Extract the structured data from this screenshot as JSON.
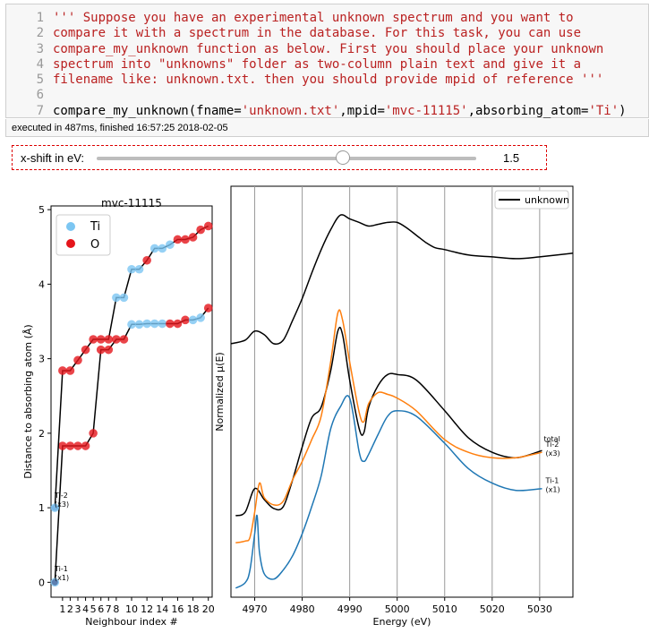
{
  "cell": {
    "line_numbers": [
      "1",
      "2",
      "3",
      "4",
      "5",
      "6",
      "7"
    ],
    "docstring_lines": [
      "''' Suppose you have an experimental unknown spectrum and you want to",
      "compare it with a spectrum in the database. For this task, you can use",
      "compare_my_unknown function as below. First you should place your unknown",
      "spectrum into \"unknowns\" folder as two-column plain text and give it a",
      "filename like: unknown.txt. then you should provide mpid of reference '''"
    ],
    "call": {
      "p1": "compare_my_unknown(fname=",
      "s1": "'unknown.txt'",
      "p2": ",mpid=",
      "s2": "'mvc-11115'",
      "p3": ",absorbing_atom=",
      "s3": "'Ti'",
      "p4": ")"
    },
    "exec_status": "executed in 487ms, finished 16:57:25 2018-02-05"
  },
  "widget": {
    "label": "x-shift in eV:",
    "value": "1.5",
    "value_num": 1.5
  },
  "colors": {
    "ti": "#7cc6f2",
    "o": "#e5151b",
    "ti2": "#ff7f0e",
    "ti1": "#1f77b4",
    "black": "#000000"
  },
  "chart_data": [
    {
      "type": "scatter",
      "title": "mvc-11115",
      "xlabel": "Neighbour index #",
      "ylabel": "Distance to absorbing atom (Å)",
      "xlim": [
        -0.5,
        20.5
      ],
      "ylim": [
        -0.2,
        5.05
      ],
      "x_ticks": [
        "1",
        "2",
        "3",
        "4",
        "5",
        "6",
        "7",
        "8",
        "10",
        "12",
        "14",
        "16",
        "18",
        "20"
      ],
      "y_ticks": [
        "0",
        "1",
        "2",
        "3",
        "4",
        "5"
      ],
      "legend": [
        "Ti",
        "O"
      ],
      "legend_position": "top-left",
      "annotations": [
        {
          "label": "Ti-2",
          "sub": "(x3)"
        },
        {
          "label": "Ti-1",
          "sub": "(x1)"
        }
      ],
      "series": [
        {
          "name": "Ti-1 (x1)",
          "x": [
            0,
            1,
            2,
            3,
            4,
            5,
            6,
            7,
            8,
            9,
            10,
            11,
            12,
            13,
            14,
            15,
            16,
            17,
            18,
            19,
            20
          ],
          "y": [
            0.0,
            1.83,
            1.83,
            1.83,
            1.83,
            2.0,
            3.12,
            3.12,
            3.26,
            3.26,
            3.46,
            3.46,
            3.47,
            3.47,
            3.47,
            3.47,
            3.47,
            3.52,
            3.52,
            3.55,
            3.68
          ],
          "kinds": [
            "Ti",
            "O",
            "O",
            "O",
            "O",
            "O",
            "O",
            "O",
            "O",
            "O",
            "Ti",
            "Ti",
            "Ti",
            "Ti",
            "Ti",
            "O",
            "O",
            "O",
            "Ti",
            "Ti",
            "O"
          ]
        },
        {
          "name": "Ti-2 (x3)",
          "x": [
            0,
            1,
            2,
            3,
            4,
            5,
            6,
            7,
            8,
            9,
            10,
            11,
            12,
            13,
            14,
            15,
            16,
            17,
            18,
            19,
            20
          ],
          "y": [
            1.0,
            2.84,
            2.84,
            2.98,
            3.12,
            3.26,
            3.26,
            3.26,
            3.82,
            3.82,
            4.2,
            4.2,
            4.32,
            4.48,
            4.48,
            4.53,
            4.6,
            4.6,
            4.63,
            4.73,
            4.78
          ],
          "kinds": [
            "Ti",
            "O",
            "O",
            "O",
            "O",
            "O",
            "O",
            "O",
            "Ti",
            "Ti",
            "Ti",
            "Ti",
            "O",
            "Ti",
            "Ti",
            "Ti",
            "O",
            "O",
            "O",
            "O",
            "O"
          ]
        }
      ]
    },
    {
      "type": "line",
      "xlabel": "Energy (eV)",
      "ylabel": "Normalized μ(E)",
      "xlim": [
        4965,
        5037
      ],
      "x_ticks": [
        4970,
        4980,
        4990,
        5000,
        5010,
        5020,
        5030
      ],
      "vlines": [
        4970,
        4980,
        4990,
        5000,
        5010,
        5020,
        5030
      ],
      "legend": [
        "unknown"
      ],
      "legend_position": "top-right",
      "series": [
        {
          "name": "unknown",
          "color": "#000000",
          "x": [
            4965,
            4968,
            4970,
            4972,
            4974,
            4976,
            4978,
            4980,
            4982,
            4984,
            4986,
            4988,
            4990,
            4992,
            4994,
            4996,
            4998,
            5000,
            5002,
            5004,
            5006,
            5008,
            5010,
            5015,
            5020,
            5025,
            5030,
            5037
          ],
          "y": [
            1.35,
            1.37,
            1.42,
            1.4,
            1.35,
            1.37,
            1.48,
            1.6,
            1.74,
            1.87,
            1.98,
            2.06,
            2.04,
            2.02,
            2.0,
            2.01,
            2.02,
            2.02,
            1.99,
            1.95,
            1.91,
            1.88,
            1.87,
            1.84,
            1.83,
            1.82,
            1.83,
            1.85
          ]
        },
        {
          "name": "total",
          "color": "#000000",
          "label": "total",
          "x": [
            4966,
            4968,
            4970,
            4972,
            4974,
            4976,
            4978,
            4980,
            4982,
            4984,
            4986,
            4987.5,
            4988.5,
            4990,
            4992,
            4993,
            4994,
            4996,
            4998,
            5000,
            5004,
            5010,
            5015,
            5020,
            5025,
            5030.5
          ],
          "y": [
            0.4,
            0.42,
            0.55,
            0.49,
            0.44,
            0.45,
            0.6,
            0.78,
            0.94,
            1.0,
            1.2,
            1.42,
            1.4,
            1.15,
            0.88,
            0.86,
            1.0,
            1.12,
            1.18,
            1.18,
            1.15,
            0.98,
            0.83,
            0.75,
            0.72,
            0.76
          ]
        },
        {
          "name": "Ti-2 (x3)",
          "color": "#ff7f0e",
          "label": "Ti-2",
          "sub": "(x3)",
          "x": [
            4966,
            4968,
            4969,
            4970,
            4971,
            4972,
            4974,
            4976,
            4978,
            4980,
            4982,
            4984,
            4986,
            4987.5,
            4988.5,
            4990,
            4992,
            4993,
            4994,
            4996,
            4998,
            5000,
            5004,
            5010,
            5015,
            5020,
            5025,
            5030.5
          ],
          "y": [
            0.25,
            0.26,
            0.28,
            0.42,
            0.58,
            0.5,
            0.46,
            0.48,
            0.6,
            0.7,
            0.82,
            0.95,
            1.25,
            1.52,
            1.48,
            1.25,
            0.97,
            0.92,
            1.02,
            1.08,
            1.07,
            1.05,
            0.98,
            0.82,
            0.75,
            0.72,
            0.72,
            0.75
          ]
        },
        {
          "name": "Ti-1 (x1)",
          "color": "#1f77b4",
          "label": "Ti-1",
          "sub": "(x1)",
          "x": [
            4966,
            4968,
            4969,
            4970,
            4970.5,
            4971,
            4972,
            4974,
            4976,
            4978,
            4980,
            4982,
            4984,
            4986,
            4988,
            4990,
            4992,
            4993,
            4994,
            4996,
            4998,
            5000,
            5004,
            5010,
            5015,
            5020,
            5025,
            5030.5
          ],
          "y": [
            0.0,
            0.03,
            0.1,
            0.3,
            0.4,
            0.2,
            0.08,
            0.05,
            0.1,
            0.18,
            0.3,
            0.45,
            0.62,
            0.88,
            1.0,
            1.05,
            0.75,
            0.7,
            0.74,
            0.85,
            0.95,
            0.98,
            0.95,
            0.8,
            0.66,
            0.58,
            0.54,
            0.55
          ]
        }
      ]
    }
  ]
}
